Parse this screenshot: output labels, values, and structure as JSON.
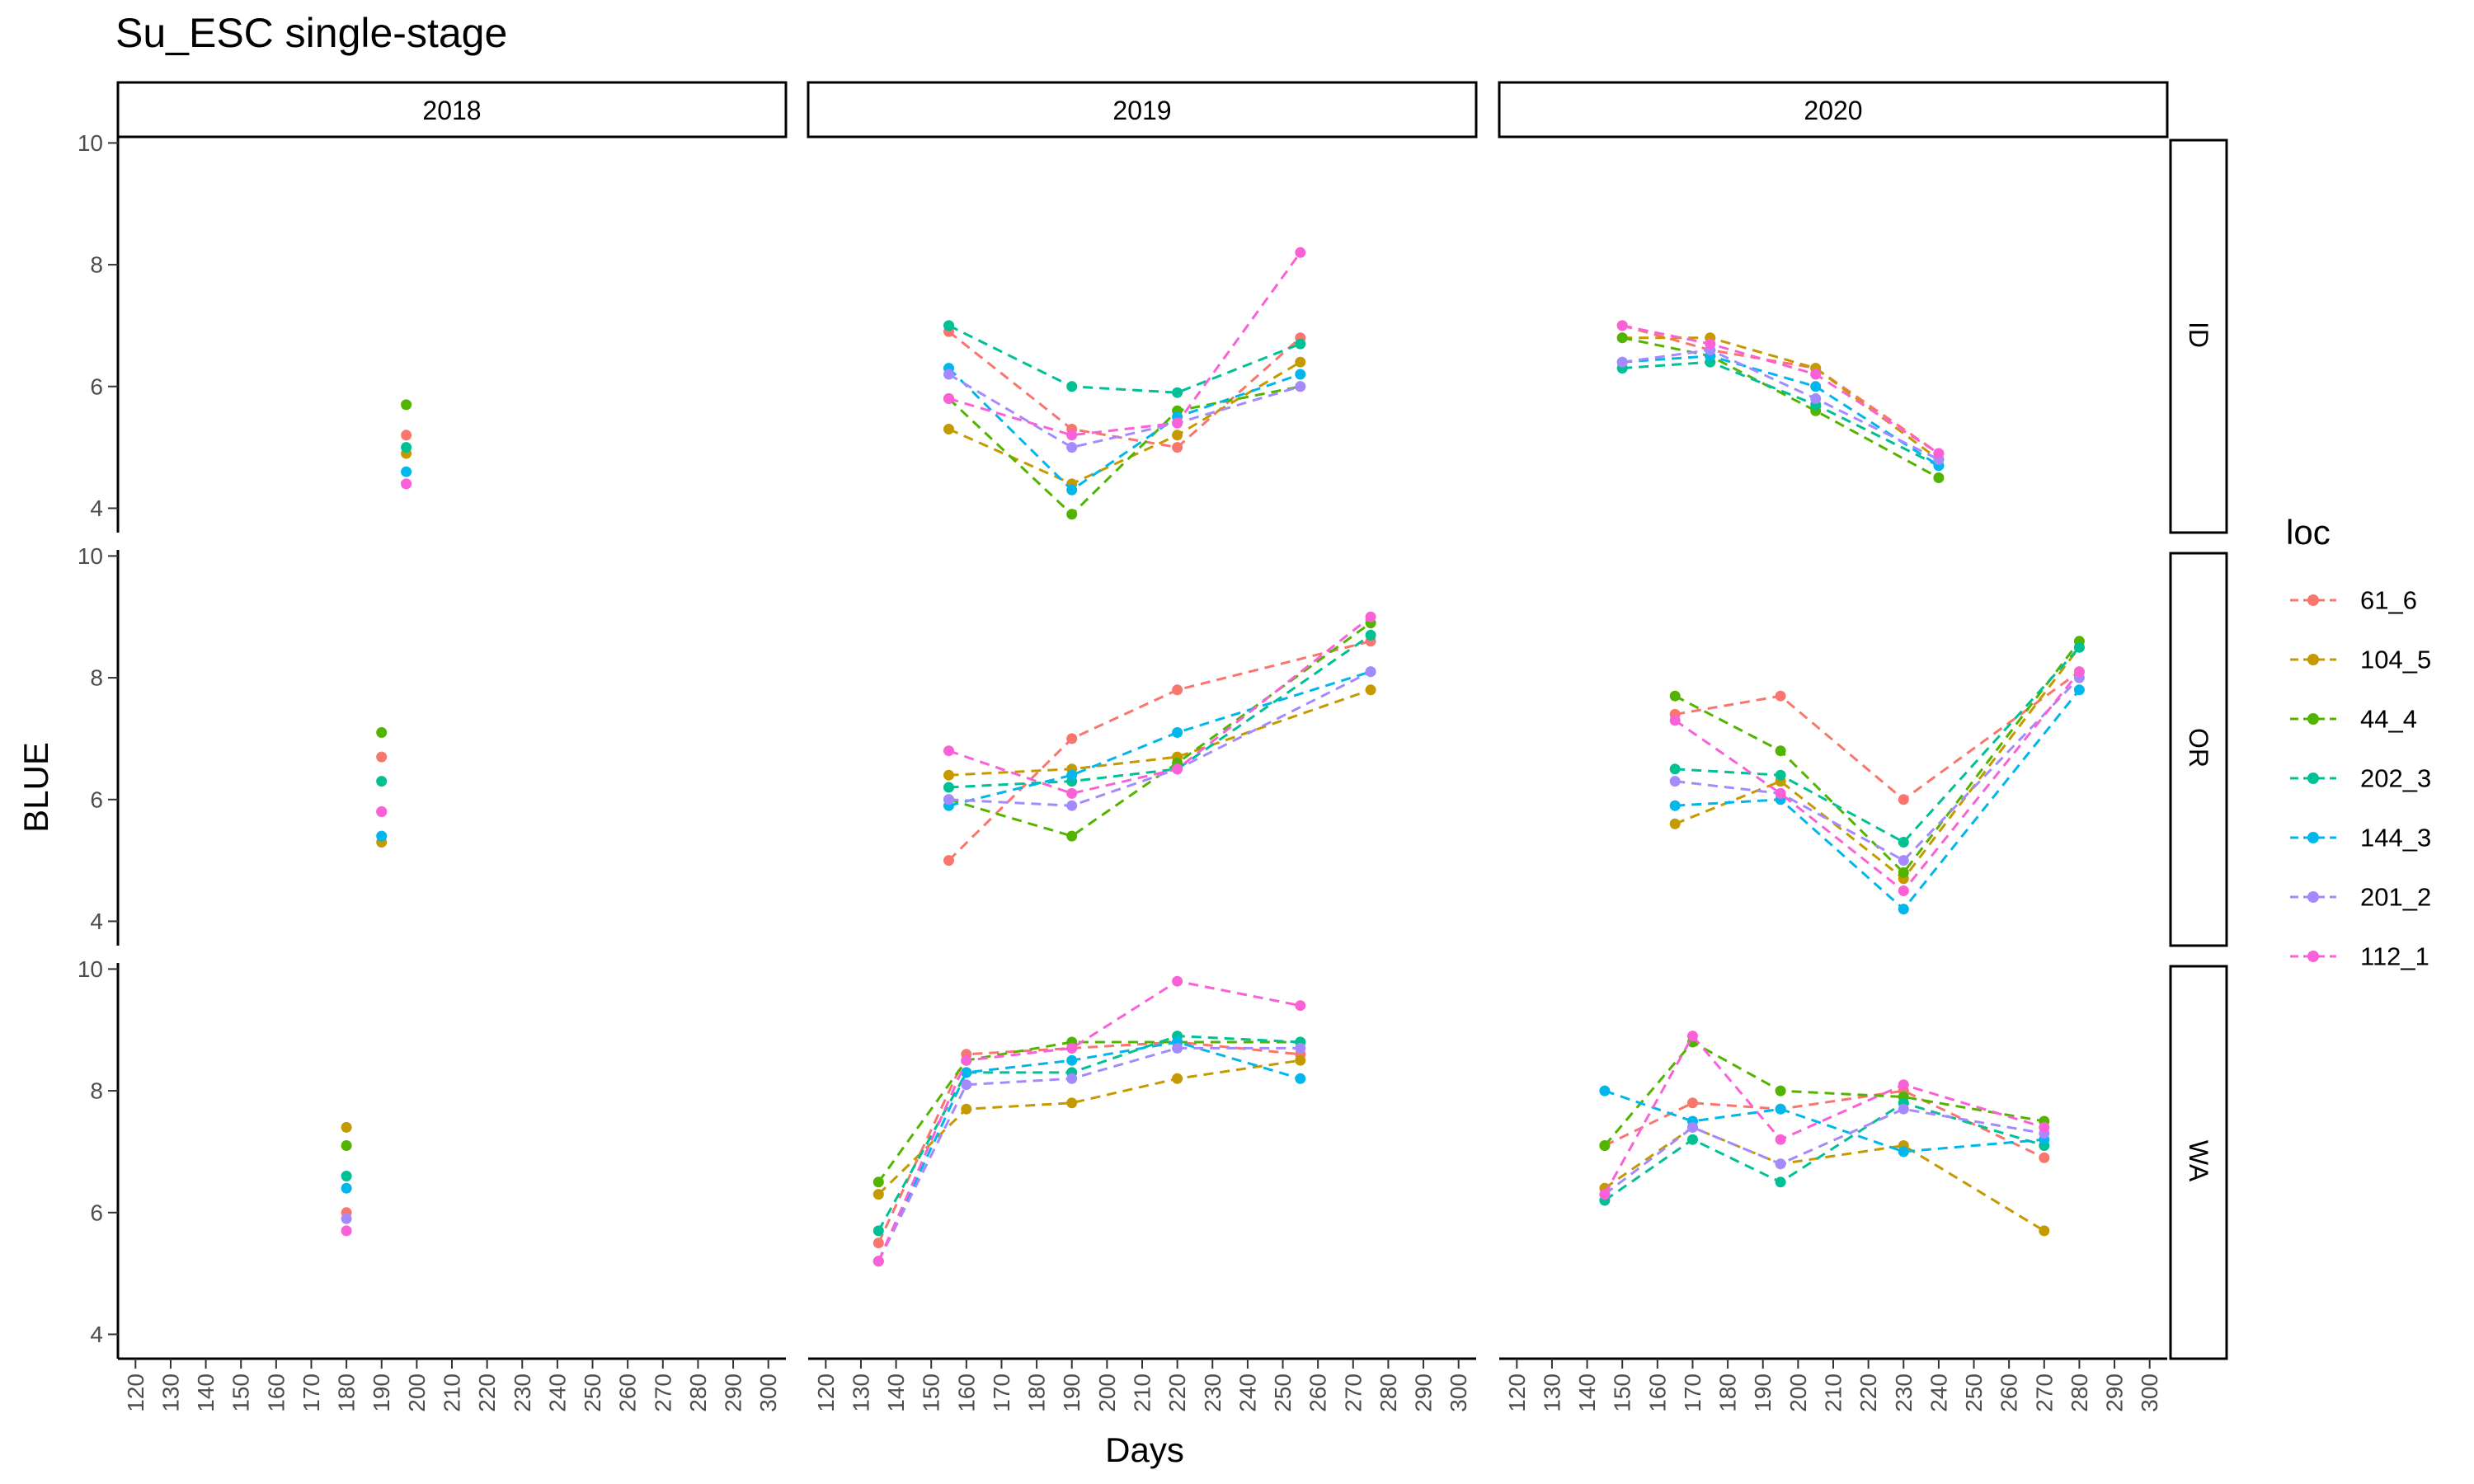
{
  "chart_data": {
    "type": "line",
    "title": "Su_ESC single-stage",
    "xlabel": "Days",
    "ylabel": "BLUE",
    "legend_title": "loc",
    "legend_position": "right",
    "grid": false,
    "facet_cols": [
      "2018",
      "2019",
      "2020"
    ],
    "facet_rows": [
      "ID",
      "OR",
      "WA"
    ],
    "xlim": [
      115,
      305
    ],
    "ylim": [
      3.6,
      10.1
    ],
    "x_ticks": [
      120,
      130,
      140,
      150,
      160,
      170,
      180,
      190,
      200,
      210,
      220,
      230,
      240,
      250,
      260,
      270,
      280,
      290,
      300
    ],
    "x_tick_labels": [
      "120",
      "130",
      "140",
      "150",
      "160",
      "170",
      "180",
      "190",
      "200",
      "210",
      "220",
      "230",
      "240",
      "250",
      "260",
      "270",
      "280",
      "290",
      "300"
    ],
    "y_ticks": [
      4,
      6,
      8,
      10
    ],
    "y_tick_labels": [
      "4",
      "6",
      "8",
      "10"
    ],
    "series": [
      {
        "name": "61_6",
        "color": "#F8766D",
        "panels": {
          "2018": {
            "ID": [
              [
                197,
                5.2
              ]
            ],
            "OR": [
              [
                190,
                6.7
              ]
            ],
            "WA": [
              [
                180,
                6.0
              ]
            ]
          },
          "2019": {
            "ID": [
              [
                155,
                6.9
              ],
              [
                190,
                5.3
              ],
              [
                220,
                5.0
              ],
              [
                255,
                6.8
              ]
            ],
            "OR": [
              [
                155,
                5.0
              ],
              [
                190,
                7.0
              ],
              [
                220,
                7.8
              ],
              [
                275,
                8.6
              ]
            ],
            "WA": [
              [
                135,
                5.5
              ],
              [
                160,
                8.6
              ],
              [
                190,
                8.7
              ],
              [
                220,
                8.8
              ],
              [
                255,
                8.6
              ]
            ]
          },
          "2020": {
            "ID": [
              [
                150,
                7.0
              ],
              [
                175,
                6.6
              ],
              [
                205,
                6.3
              ],
              [
                240,
                4.9
              ]
            ],
            "OR": [
              [
                165,
                7.4
              ],
              [
                195,
                7.7
              ],
              [
                230,
                6.0
              ],
              [
                280,
                8.1
              ]
            ],
            "WA": [
              [
                145,
                7.1
              ],
              [
                170,
                7.8
              ],
              [
                195,
                7.7
              ],
              [
                230,
                8.0
              ],
              [
                270,
                6.9
              ]
            ]
          }
        }
      },
      {
        "name": "104_5",
        "color": "#C49A00",
        "panels": {
          "2018": {
            "ID": [
              [
                197,
                4.9
              ]
            ],
            "OR": [
              [
                190,
                5.3
              ]
            ],
            "WA": [
              [
                180,
                7.4
              ]
            ]
          },
          "2019": {
            "ID": [
              [
                155,
                5.3
              ],
              [
                190,
                4.4
              ],
              [
                220,
                5.2
              ],
              [
                255,
                6.4
              ]
            ],
            "OR": [
              [
                155,
                6.4
              ],
              [
                190,
                6.5
              ],
              [
                220,
                6.7
              ],
              [
                275,
                7.8
              ]
            ],
            "WA": [
              [
                135,
                6.3
              ],
              [
                160,
                7.7
              ],
              [
                190,
                7.8
              ],
              [
                220,
                8.2
              ],
              [
                255,
                8.5
              ]
            ]
          },
          "2020": {
            "ID": [
              [
                150,
                6.8
              ],
              [
                175,
                6.8
              ],
              [
                205,
                6.3
              ],
              [
                240,
                4.8
              ]
            ],
            "OR": [
              [
                165,
                5.6
              ],
              [
                195,
                6.3
              ],
              [
                230,
                4.7
              ],
              [
                280,
                8.5
              ]
            ],
            "WA": [
              [
                145,
                6.4
              ],
              [
                170,
                7.4
              ],
              [
                195,
                6.8
              ],
              [
                230,
                7.1
              ],
              [
                270,
                5.7
              ]
            ]
          }
        }
      },
      {
        "name": "44_4",
        "color": "#53B400",
        "panels": {
          "2018": {
            "ID": [
              [
                197,
                5.7
              ]
            ],
            "OR": [
              [
                190,
                7.1
              ]
            ],
            "WA": [
              [
                180,
                7.1
              ]
            ]
          },
          "2019": {
            "ID": [
              [
                155,
                5.8
              ],
              [
                190,
                3.9
              ],
              [
                220,
                5.6
              ],
              [
                255,
                6.0
              ]
            ],
            "OR": [
              [
                155,
                6.0
              ],
              [
                190,
                5.4
              ],
              [
                220,
                6.6
              ],
              [
                275,
                8.9
              ]
            ],
            "WA": [
              [
                135,
                6.5
              ],
              [
                160,
                8.5
              ],
              [
                190,
                8.8
              ],
              [
                220,
                8.8
              ],
              [
                255,
                8.8
              ]
            ]
          },
          "2020": {
            "ID": [
              [
                150,
                6.8
              ],
              [
                175,
                6.5
              ],
              [
                205,
                5.6
              ],
              [
                240,
                4.5
              ]
            ],
            "OR": [
              [
                165,
                7.7
              ],
              [
                195,
                6.8
              ],
              [
                230,
                4.8
              ],
              [
                280,
                8.6
              ]
            ],
            "WA": [
              [
                145,
                7.1
              ],
              [
                170,
                8.8
              ],
              [
                195,
                8.0
              ],
              [
                230,
                7.9
              ],
              [
                270,
                7.5
              ]
            ]
          }
        }
      },
      {
        "name": "202_3",
        "color": "#00C094",
        "panels": {
          "2018": {
            "ID": [
              [
                197,
                5.0
              ]
            ],
            "OR": [
              [
                190,
                6.3
              ]
            ],
            "WA": [
              [
                180,
                6.6
              ]
            ]
          },
          "2019": {
            "ID": [
              [
                155,
                7.0
              ],
              [
                190,
                6.0
              ],
              [
                220,
                5.9
              ],
              [
                255,
                6.7
              ]
            ],
            "OR": [
              [
                155,
                6.2
              ],
              [
                190,
                6.3
              ],
              [
                220,
                6.5
              ],
              [
                275,
                8.7
              ]
            ],
            "WA": [
              [
                135,
                5.7
              ],
              [
                160,
                8.3
              ],
              [
                190,
                8.3
              ],
              [
                220,
                8.9
              ],
              [
                255,
                8.8
              ]
            ]
          },
          "2020": {
            "ID": [
              [
                150,
                6.3
              ],
              [
                175,
                6.4
              ],
              [
                205,
                5.7
              ],
              [
                240,
                4.7
              ]
            ],
            "OR": [
              [
                165,
                6.5
              ],
              [
                195,
                6.4
              ],
              [
                230,
                5.3
              ],
              [
                280,
                8.5
              ]
            ],
            "WA": [
              [
                145,
                6.2
              ],
              [
                170,
                7.2
              ],
              [
                195,
                6.5
              ],
              [
                230,
                7.8
              ],
              [
                270,
                7.1
              ]
            ]
          }
        }
      },
      {
        "name": "144_3",
        "color": "#00B6EB",
        "panels": {
          "2018": {
            "ID": [
              [
                197,
                4.6
              ]
            ],
            "OR": [
              [
                190,
                5.4
              ]
            ],
            "WA": [
              [
                180,
                6.4
              ]
            ]
          },
          "2019": {
            "ID": [
              [
                155,
                6.3
              ],
              [
                190,
                4.3
              ],
              [
                220,
                5.5
              ],
              [
                255,
                6.2
              ]
            ],
            "OR": [
              [
                155,
                5.9
              ],
              [
                190,
                6.4
              ],
              [
                220,
                7.1
              ],
              [
                275,
                8.1
              ]
            ],
            "WA": [
              [
                135,
                5.2
              ],
              [
                160,
                8.3
              ],
              [
                190,
                8.5
              ],
              [
                220,
                8.8
              ],
              [
                255,
                8.2
              ]
            ]
          },
          "2020": {
            "ID": [
              [
                150,
                6.4
              ],
              [
                175,
                6.5
              ],
              [
                205,
                6.0
              ],
              [
                240,
                4.7
              ]
            ],
            "OR": [
              [
                165,
                5.9
              ],
              [
                195,
                6.0
              ],
              [
                230,
                4.2
              ],
              [
                280,
                7.8
              ]
            ],
            "WA": [
              [
                145,
                8.0
              ],
              [
                170,
                7.5
              ],
              [
                195,
                7.7
              ],
              [
                230,
                7.0
              ],
              [
                270,
                7.2
              ]
            ]
          }
        }
      },
      {
        "name": "201_2",
        "color": "#A58AFF",
        "panels": {
          "2018": {
            "ID": [
              [
                197,
                4.4
              ]
            ],
            "OR": [
              [
                190,
                5.8
              ]
            ],
            "WA": [
              [
                180,
                5.9
              ]
            ]
          },
          "2019": {
            "ID": [
              [
                155,
                6.2
              ],
              [
                190,
                5.0
              ],
              [
                220,
                5.4
              ],
              [
                255,
                6.0
              ]
            ],
            "OR": [
              [
                155,
                6.0
              ],
              [
                190,
                5.9
              ],
              [
                220,
                6.5
              ],
              [
                275,
                8.1
              ]
            ],
            "WA": [
              [
                135,
                5.2
              ],
              [
                160,
                8.1
              ],
              [
                190,
                8.2
              ],
              [
                220,
                8.7
              ],
              [
                255,
                8.7
              ]
            ]
          },
          "2020": {
            "ID": [
              [
                150,
                6.4
              ],
              [
                175,
                6.6
              ],
              [
                205,
                5.8
              ],
              [
                240,
                4.8
              ]
            ],
            "OR": [
              [
                165,
                6.3
              ],
              [
                195,
                6.1
              ],
              [
                230,
                5.0
              ],
              [
                280,
                8.0
              ]
            ],
            "WA": [
              [
                145,
                6.3
              ],
              [
                170,
                7.4
              ],
              [
                195,
                6.8
              ],
              [
                230,
                7.7
              ],
              [
                270,
                7.3
              ]
            ]
          }
        }
      },
      {
        "name": "112_1",
        "color": "#FB61D7",
        "panels": {
          "2018": {
            "ID": [
              [
                197,
                4.4
              ]
            ],
            "OR": [
              [
                190,
                5.8
              ]
            ],
            "WA": [
              [
                180,
                5.7
              ]
            ]
          },
          "2019": {
            "ID": [
              [
                155,
                5.8
              ],
              [
                190,
                5.2
              ],
              [
                220,
                5.4
              ],
              [
                255,
                8.2
              ]
            ],
            "OR": [
              [
                155,
                6.8
              ],
              [
                190,
                6.1
              ],
              [
                220,
                6.5
              ],
              [
                275,
                9.0
              ]
            ],
            "WA": [
              [
                135,
                5.2
              ],
              [
                160,
                8.5
              ],
              [
                190,
                8.7
              ],
              [
                220,
                9.8
              ],
              [
                255,
                9.4
              ]
            ]
          },
          "2020": {
            "ID": [
              [
                150,
                7.0
              ],
              [
                175,
                6.7
              ],
              [
                205,
                6.2
              ],
              [
                240,
                4.9
              ]
            ],
            "OR": [
              [
                165,
                7.3
              ],
              [
                195,
                6.1
              ],
              [
                230,
                4.5
              ],
              [
                280,
                8.1
              ]
            ],
            "WA": [
              [
                145,
                6.3
              ],
              [
                170,
                8.9
              ],
              [
                195,
                7.2
              ],
              [
                230,
                8.1
              ],
              [
                270,
                7.4
              ]
            ]
          }
        }
      }
    ]
  }
}
